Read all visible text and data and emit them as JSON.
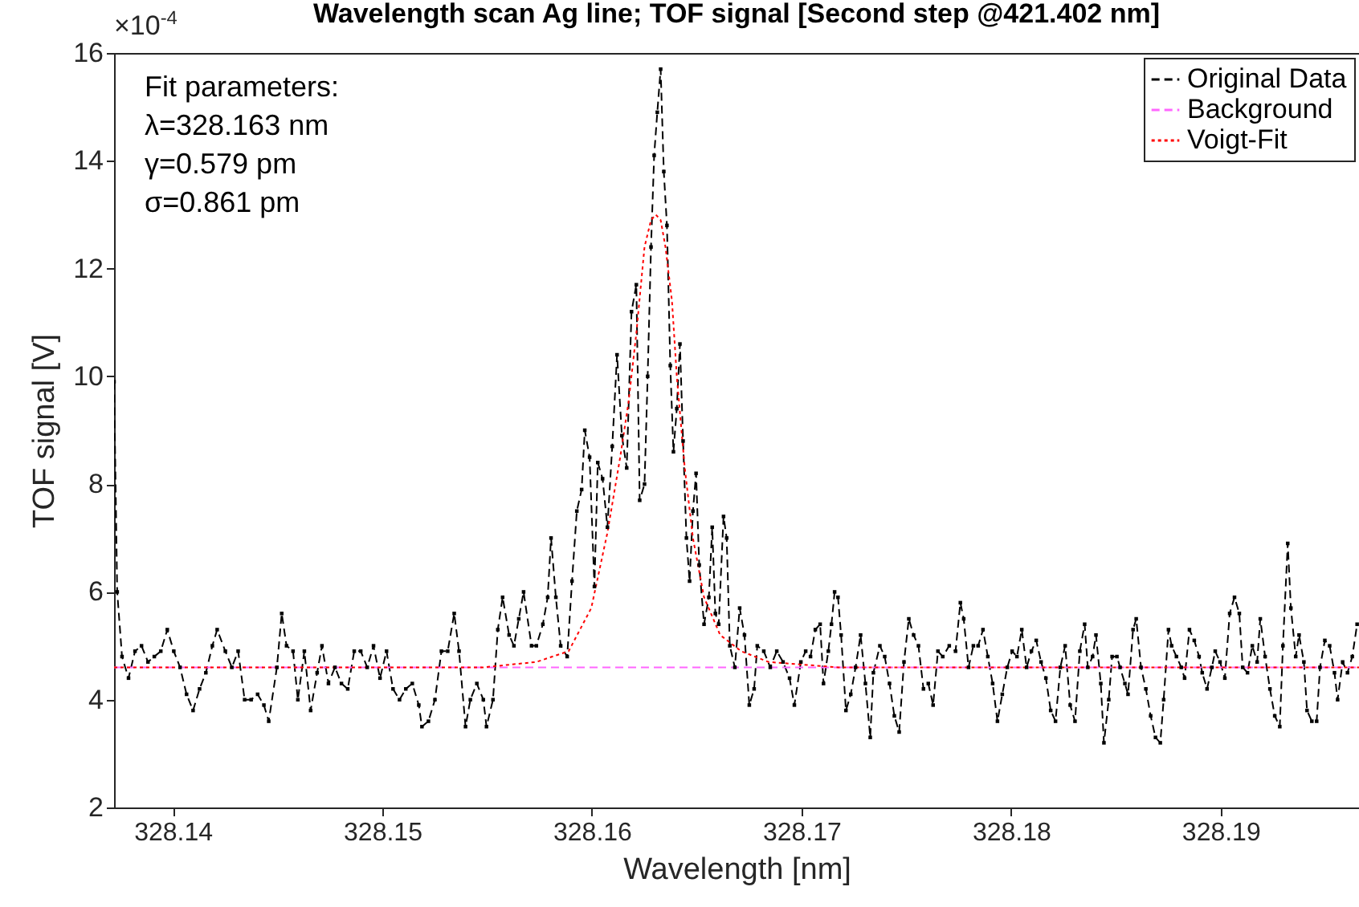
{
  "chart_data": {
    "type": "line",
    "title": "Wavelength scan Ag line; TOF signal [Second step @421.402 nm]",
    "xlabel": "Wavelength [nm]",
    "ylabel": "TOF signal [V]",
    "annotations": [
      "×10$^{-4}$",
      "Fit parameters:",
      "λ=328.163 nm",
      "γ=0.579 pm",
      "σ=0.861 pm"
    ],
    "xlim": [
      328.1372,
      328.1966
    ],
    "xticks": [
      328.14,
      328.15,
      328.16,
      328.17,
      328.18,
      328.19
    ],
    "ylim": [
      2,
      16
    ],
    "yticks": [
      2,
      4,
      6,
      8,
      10,
      12,
      14,
      16
    ],
    "legend": "top right",
    "grid": false,
    "series": [
      {
        "name": "Original Data",
        "color": "#000000",
        "marker": "square",
        "line_style": "dashed",
        "x": [
          328.1372,
          328.13735,
          328.13758,
          328.13789,
          328.1382,
          328.13851,
          328.13882,
          328.13912,
          328.13943,
          328.13974,
          328.14005,
          328.14035,
          328.14066,
          328.14097,
          328.14128,
          328.14158,
          328.14189,
          328.14212,
          328.14251,
          328.14282,
          328.14312,
          328.14343,
          328.14374,
          328.14405,
          328.14435,
          328.14458,
          328.14497,
          328.1452,
          328.14543,
          328.14574,
          328.14597,
          328.14628,
          328.14658,
          328.14689,
          328.14712,
          328.14743,
          328.14774,
          328.14805,
          328.14835,
          328.14866,
          328.14897,
          328.14928,
          328.14958,
          328.14989,
          328.1502,
          328.15051,
          328.15082,
          328.15112,
          328.15143,
          328.15174,
          328.15189,
          328.1522,
          328.15251,
          328.15282,
          328.15312,
          328.15343,
          328.15366,
          328.15397,
          328.1542,
          328.15451,
          328.15482,
          328.15497,
          328.15528,
          328.15551,
          328.15574,
          328.15605,
          328.15628,
          328.15651,
          328.15674,
          328.15712,
          328.15735,
          328.15766,
          328.15789,
          328.15805,
          328.15828,
          328.15851,
          328.15882,
          328.15905,
          328.15928,
          328.15951,
          328.15966,
          328.15989,
          328.16012,
          328.16028,
          328.16051,
          328.16074,
          328.16097,
          328.1612,
          328.16143,
          328.16166,
          328.16189,
          328.16212,
          328.16228,
          328.16251,
          328.16266,
          328.16282,
          328.16297,
          328.16312,
          328.16328,
          328.16343,
          328.16358,
          328.16374,
          328.16389,
          328.16405,
          328.1642,
          328.16435,
          328.16451,
          328.16466,
          328.16482,
          328.16497,
          328.16512,
          328.16535,
          328.16558,
          328.16574,
          328.16589,
          328.16605,
          328.16628,
          328.16643,
          328.16658,
          328.16682,
          328.16705,
          328.16728,
          328.16751,
          328.16774,
          328.16789,
          328.1682,
          328.16851,
          328.16882,
          328.16912,
          328.16943,
          328.16966,
          328.16997,
          328.1702,
          328.17043,
          328.17066,
          328.17089,
          328.17105,
          328.17128,
          328.17143,
          328.17158,
          328.17174,
          328.17189,
          328.17212,
          328.17235,
          328.17258,
          328.17282,
          328.17305,
          328.17328,
          328.17343,
          328.17374,
          328.17397,
          328.1742,
          328.17443,
          328.17466,
          328.17489,
          328.17512,
          328.17535,
          328.17558,
          328.17582,
          328.17605,
          328.17628,
          328.17651,
          328.17674,
          328.17705,
          328.17735,
          328.17758,
          328.17774,
          328.17797,
          328.1782,
          328.17843,
          328.17866,
          328.17889,
          328.17912,
          328.17935,
          328.17958,
          328.17982,
          328.18005,
          328.18028,
          328.18051,
          328.18074,
          328.18097,
          328.1812,
          328.18143,
          328.18166,
          328.18189,
          328.18212,
          328.18235,
          328.18258,
          328.18282,
          328.18305,
          328.18328,
          328.18351,
          328.18366,
          328.18389,
          328.18405,
          328.18428,
          328.18443,
          328.18466,
          328.18482,
          328.18505,
          328.1852,
          328.18543,
          328.18558,
          328.18582,
          328.18597,
          328.1862,
          328.18643,
          328.18666,
          328.18689,
          328.18712,
          328.18728,
          328.18751,
          328.18766,
          328.18789,
          328.18812,
          328.18828,
          328.18851,
          328.18874,
          328.18897,
          328.18912,
          328.18935,
          328.18958,
          328.18974,
          328.18997,
          328.1902,
          328.19043,
          328.19066,
          328.19089,
          328.19105,
          328.19128,
          328.19151,
          328.19174,
          328.19189,
          328.19212,
          328.19235,
          328.19258,
          328.19282,
          328.19297,
          328.1932,
          328.19335,
          328.19358,
          328.19374,
          328.19397,
          328.19412,
          328.19435,
          328.19458,
          328.19474,
          328.19497,
          328.1952,
          328.19543,
          328.19558,
          328.19582,
          328.19605,
          328.19628,
          328.19651
        ],
        "values": [
          9.9,
          6.0,
          4.8,
          4.4,
          4.9,
          5.0,
          4.7,
          4.8,
          4.9,
          5.3,
          4.9,
          4.6,
          4.1,
          3.8,
          4.2,
          4.5,
          5.0,
          5.3,
          4.9,
          4.6,
          4.9,
          4.0,
          4.0,
          4.1,
          3.9,
          3.6,
          4.6,
          5.6,
          5.0,
          4.9,
          4.0,
          4.9,
          3.8,
          4.5,
          5.0,
          4.3,
          4.6,
          4.3,
          4.2,
          4.9,
          4.9,
          4.6,
          5.0,
          4.4,
          4.9,
          4.2,
          4.0,
          4.2,
          4.3,
          3.9,
          3.5,
          3.6,
          4.0,
          4.9,
          4.9,
          5.6,
          4.9,
          3.5,
          4.0,
          4.3,
          4.0,
          3.5,
          4.0,
          5.3,
          5.9,
          5.2,
          5.0,
          5.5,
          6.0,
          5.0,
          5.0,
          5.4,
          5.9,
          7.0,
          5.9,
          5.0,
          4.8,
          6.2,
          7.5,
          7.9,
          9.0,
          8.5,
          6.1,
          8.4,
          8.1,
          7.2,
          8.7,
          10.4,
          8.9,
          8.3,
          11.2,
          11.7,
          7.7,
          8.0,
          10.0,
          12.4,
          14.1,
          14.9,
          15.7,
          13.8,
          12.8,
          10.2,
          8.6,
          9.4,
          10.6,
          8.8,
          7.0,
          6.2,
          7.5,
          8.2,
          6.5,
          5.4,
          5.9,
          7.2,
          5.6,
          5.4,
          7.4,
          7.0,
          5.0,
          4.6,
          5.7,
          5.2,
          3.9,
          4.2,
          5.0,
          4.9,
          4.6,
          4.9,
          4.7,
          4.4,
          3.9,
          4.7,
          4.9,
          4.8,
          5.3,
          5.4,
          4.3,
          4.9,
          5.4,
          6.0,
          5.9,
          5.2,
          3.8,
          4.1,
          4.6,
          5.2,
          4.3,
          3.3,
          4.5,
          5.0,
          4.8,
          4.3,
          3.7,
          3.4,
          4.7,
          5.5,
          5.2,
          5.0,
          4.2,
          4.3,
          3.9,
          4.9,
          4.8,
          5.0,
          4.9,
          5.8,
          5.5,
          4.6,
          5.0,
          5.0,
          5.3,
          4.8,
          4.3,
          3.6,
          4.1,
          4.6,
          4.9,
          4.8,
          5.3,
          4.6,
          4.9,
          5.1,
          4.7,
          4.4,
          3.8,
          3.6,
          4.6,
          5.0,
          3.9,
          3.6,
          4.9,
          5.4,
          4.6,
          4.8,
          5.2,
          4.3,
          3.2,
          4.0,
          4.8,
          4.8,
          4.6,
          4.3,
          4.1,
          5.3,
          5.5,
          4.6,
          4.2,
          3.7,
          3.3,
          3.2,
          4.0,
          5.3,
          5.0,
          4.8,
          4.6,
          4.4,
          5.3,
          5.1,
          4.8,
          4.5,
          4.2,
          4.6,
          4.9,
          4.7,
          4.4,
          5.6,
          5.9,
          5.6,
          4.6,
          4.5,
          5.0,
          4.7,
          5.5,
          4.8,
          4.2,
          3.7,
          3.5,
          5.0,
          6.9,
          5.7,
          4.8,
          5.2,
          4.7,
          3.8,
          3.6,
          3.6,
          4.6,
          5.1,
          5.0,
          4.5,
          4.0,
          4.7,
          4.5,
          4.8,
          5.4
        ]
      },
      {
        "name": "Background",
        "color": "#ff66ff",
        "line_style": "dashed",
        "x": [
          328.1372,
          328.1966
        ],
        "values": [
          4.6,
          4.6
        ]
      },
      {
        "name": "Voigt-Fit",
        "color": "#ff0000",
        "line_style": "dotted",
        "x": [
          328.1372,
          328.15097,
          328.15482,
          328.15735,
          328.15889,
          328.15997,
          328.16074,
          328.16135,
          328.16174,
          328.16212,
          328.16251,
          328.16282,
          328.16305,
          328.16328,
          328.16351,
          328.16382,
          328.16405,
          328.16443,
          328.16482,
          328.16535,
          328.16612,
          328.16712,
          328.16843,
          328.17174,
          328.17789,
          328.1966
        ],
        "values": [
          4.6,
          4.6,
          4.6,
          4.7,
          4.9,
          5.7,
          7.1,
          8.5,
          9.5,
          10.8,
          12.4,
          12.9,
          13.0,
          12.9,
          12.4,
          11.4,
          10.0,
          8.3,
          7.0,
          5.9,
          5.2,
          4.9,
          4.7,
          4.6,
          4.6,
          4.6
        ]
      }
    ]
  }
}
